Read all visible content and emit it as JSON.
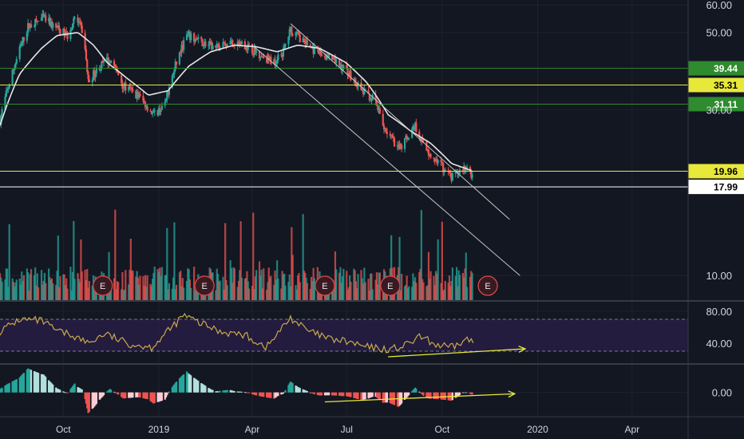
{
  "theme": {
    "background": "#131722",
    "grid": "#1e222d",
    "text": "#d1d4dc",
    "up": "#26a69a",
    "down": "#ef5350",
    "ma": "#e6e6e6",
    "rsi_line": "#c9a94b",
    "rsi_band": "#2a1f4a",
    "trendline": "#c8c8c8",
    "annotation": "#e8e83a",
    "level_green": "#2e8b2e",
    "level_yellow": "#e8e83a",
    "level_white": "#ffffff",
    "earnings_border": "#d44a4a",
    "earnings_fill": "#3a1a22"
  },
  "chart_data": [
    {
      "type": "candlestick",
      "panel": "price",
      "y_scale": "log",
      "ylim": [
        8.5,
        62
      ],
      "y_ticks": [
        "60.00",
        "50.00",
        "30.00",
        "10.00"
      ],
      "x_ticks": [
        "Oct",
        "2019",
        "Apr",
        "Jul",
        "Oct",
        "2020",
        "Apr"
      ],
      "x_tick_dates": [
        "2018-10-01",
        "2019-01-01",
        "2019-04-01",
        "2019-07-01",
        "2019-10-01",
        "2020-01-01",
        "2020-04-01"
      ],
      "x_range": [
        "2018-08-01",
        "2020-05-25"
      ],
      "price_path": [
        [
          "2018-08-01",
          28
        ],
        [
          "2018-08-15",
          40
        ],
        [
          "2018-08-28",
          52
        ],
        [
          "2018-09-12",
          55
        ],
        [
          "2018-09-22",
          52
        ],
        [
          "2018-10-05",
          49
        ],
        [
          "2018-10-12",
          55
        ],
        [
          "2018-10-20",
          50
        ],
        [
          "2018-10-25",
          36
        ],
        [
          "2018-11-05",
          40
        ],
        [
          "2018-11-15",
          42
        ],
        [
          "2018-11-28",
          35
        ],
        [
          "2018-12-12",
          33
        ],
        [
          "2018-12-27",
          29
        ],
        [
          "2019-01-07",
          31
        ],
        [
          "2019-01-18",
          41
        ],
        [
          "2019-01-28",
          49
        ],
        [
          "2019-02-10",
          47
        ],
        [
          "2019-02-25",
          45
        ],
        [
          "2019-03-10",
          47
        ],
        [
          "2019-03-25",
          46
        ],
        [
          "2019-04-10",
          43
        ],
        [
          "2019-04-22",
          41
        ],
        [
          "2019-05-01",
          44
        ],
        [
          "2019-05-08",
          51
        ],
        [
          "2019-05-18",
          48
        ],
        [
          "2019-06-01",
          44
        ],
        [
          "2019-06-15",
          42
        ],
        [
          "2019-07-01",
          39
        ],
        [
          "2019-07-15",
          34
        ],
        [
          "2019-07-28",
          32
        ],
        [
          "2019-08-05",
          27
        ],
        [
          "2019-08-20",
          23
        ],
        [
          "2019-09-05",
          27
        ],
        [
          "2019-09-15",
          23
        ],
        [
          "2019-09-28",
          21
        ],
        [
          "2019-10-10",
          19
        ],
        [
          "2019-10-22",
          20.5
        ],
        [
          "2019-10-30",
          19.5
        ]
      ],
      "moving_average_path": [
        [
          "2018-08-01",
          27
        ],
        [
          "2018-08-20",
          38
        ],
        [
          "2018-09-10",
          45
        ],
        [
          "2018-09-25",
          49
        ],
        [
          "2018-10-15",
          50
        ],
        [
          "2018-10-30",
          46
        ],
        [
          "2018-11-12",
          41
        ],
        [
          "2018-12-01",
          37
        ],
        [
          "2018-12-22",
          33
        ],
        [
          "2019-01-10",
          34
        ],
        [
          "2019-01-30",
          40
        ],
        [
          "2019-02-20",
          44
        ],
        [
          "2019-03-15",
          46
        ],
        [
          "2019-04-05",
          45.5
        ],
        [
          "2019-04-25",
          44
        ],
        [
          "2019-05-15",
          46
        ],
        [
          "2019-06-05",
          45
        ],
        [
          "2019-06-30",
          41
        ],
        [
          "2019-07-20",
          36
        ],
        [
          "2019-08-10",
          29
        ],
        [
          "2019-09-01",
          26
        ],
        [
          "2019-09-20",
          24
        ],
        [
          "2019-10-10",
          21
        ],
        [
          "2019-10-30",
          20
        ]
      ],
      "levels": [
        {
          "label": "39.44",
          "value": 39.44,
          "color": "#2e8b2e",
          "text_color": "#ffffff"
        },
        {
          "label": "35.31",
          "value": 35.31,
          "color": "#e8e83a",
          "text_color": "#000000"
        },
        {
          "label": "31.11",
          "value": 31.11,
          "color": "#2e8b2e",
          "text_color": "#ffffff"
        },
        {
          "label": "19.96",
          "value": 19.96,
          "color": "#e8e83a",
          "text_color": "#000000"
        },
        {
          "label": "17.99",
          "value": 17.99,
          "color": "#ffffff",
          "text_color": "#000000"
        }
      ],
      "channel_lines": [
        {
          "from": [
            "2019-05-08",
            53
          ],
          "to": [
            "2019-12-05",
            14.5
          ]
        },
        {
          "from": [
            "2019-04-01",
            46
          ],
          "to": [
            "2019-12-15",
            10
          ]
        }
      ],
      "earnings_marker_text": "E",
      "earnings_dates": [
        "2018-11-08",
        "2019-02-14",
        "2019-06-10",
        "2019-08-12",
        "2019-11-14"
      ]
    },
    {
      "type": "line",
      "panel": "rsi",
      "ylim": [
        15,
        92
      ],
      "y_ticks": [
        "80.00",
        "40.00"
      ],
      "band": [
        30,
        70
      ],
      "rsi_path": [
        [
          "2018-08-01",
          55
        ],
        [
          "2018-08-20",
          70
        ],
        [
          "2018-09-10",
          68
        ],
        [
          "2018-09-25",
          55
        ],
        [
          "2018-10-10",
          50
        ],
        [
          "2018-10-25",
          40
        ],
        [
          "2018-11-10",
          52
        ],
        [
          "2018-12-01",
          40
        ],
        [
          "2018-12-25",
          35
        ],
        [
          "2019-01-10",
          55
        ],
        [
          "2019-01-25",
          75
        ],
        [
          "2019-02-10",
          65
        ],
        [
          "2019-03-01",
          55
        ],
        [
          "2019-03-25",
          50
        ],
        [
          "2019-04-15",
          35
        ],
        [
          "2019-05-08",
          72
        ],
        [
          "2019-05-25",
          55
        ],
        [
          "2019-06-15",
          45
        ],
        [
          "2019-07-01",
          42
        ],
        [
          "2019-07-20",
          35
        ],
        [
          "2019-08-10",
          32
        ],
        [
          "2019-08-25",
          36
        ],
        [
          "2019-09-10",
          48
        ],
        [
          "2019-09-25",
          38
        ],
        [
          "2019-10-10",
          34
        ],
        [
          "2019-10-25",
          45
        ],
        [
          "2019-11-01",
          40
        ]
      ],
      "annotation_arrow": {
        "from": [
          "2019-08-10",
          23
        ],
        "to": [
          "2019-12-20",
          33
        ]
      }
    },
    {
      "type": "histogram",
      "panel": "macd",
      "ylim": [
        -0.9,
        1.0
      ],
      "y_ticks": [
        "0.00"
      ],
      "annotation_arrow": {
        "from": [
          "2019-06-10",
          -0.35
        ],
        "to": [
          "2019-12-10",
          -0.05
        ]
      }
    }
  ]
}
